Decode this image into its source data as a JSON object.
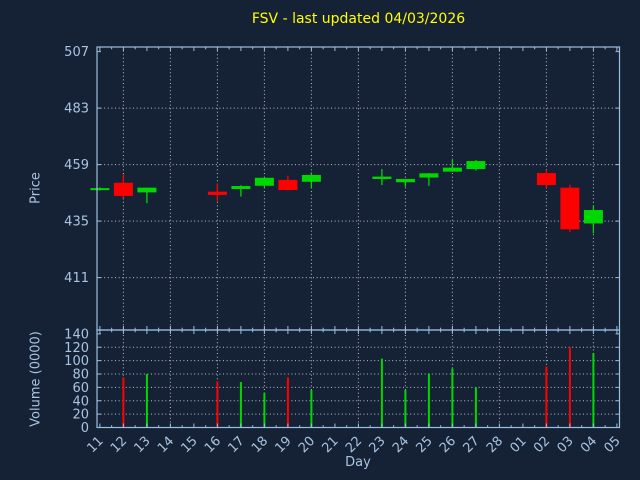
{
  "title": "FSV - last updated 04/03/2026",
  "colors": {
    "background": "#152236",
    "up": "#00d800",
    "down": "#ff0000",
    "frame": "#9cbede",
    "grid": "#b8bfc9",
    "label": "#a8c4e0",
    "title": "#ffff00"
  },
  "chart_data": {
    "type": "candlestick+volume",
    "symbol": "FSV",
    "title": "FSV - last updated 04/03/2026",
    "xlabel": "Day",
    "grid": true,
    "price_axis": {
      "label": "Price",
      "ticks": [
        507,
        483,
        459,
        435,
        411
      ],
      "gridlines": [
        483,
        459,
        435,
        411
      ],
      "range": [
        406,
        510
      ]
    },
    "volume_axis": {
      "label": "Volume (0000)",
      "ticks": [
        140,
        120,
        100,
        80,
        60,
        40,
        20,
        0
      ],
      "gridlines": [
        120,
        100,
        80,
        60,
        40,
        20
      ],
      "range": [
        0,
        145
      ]
    },
    "categories": [
      "11",
      "12",
      "13",
      "14",
      "15",
      "16",
      "17",
      "18",
      "19",
      "20",
      "21",
      "22",
      "23",
      "24",
      "25",
      "26",
      "27",
      "28",
      "01",
      "02",
      "03",
      "04",
      "05"
    ],
    "candles": [
      {
        "day": "11",
        "open": 448.2,
        "high": 449.3,
        "low": 448.0,
        "close": 449.0,
        "volume": 0
      },
      {
        "day": "12",
        "open": 451.3,
        "high": 454.9,
        "low": 444.7,
        "close": 445.7,
        "volume": 75
      },
      {
        "day": "13",
        "open": 447.2,
        "high": 449.2,
        "low": 442.6,
        "close": 449.2,
        "volume": 80
      },
      {
        "day": "16",
        "open": 447.5,
        "high": 450.8,
        "low": 443.5,
        "close": 446.1,
        "volume": 69
      },
      {
        "day": "17",
        "open": 448.6,
        "high": 450.2,
        "low": 445.4,
        "close": 449.9,
        "volume": 68
      },
      {
        "day": "18",
        "open": 450.0,
        "high": 453.4,
        "low": 449.2,
        "close": 453.4,
        "volume": 52
      },
      {
        "day": "19",
        "open": 452.5,
        "high": 454.3,
        "low": 448.0,
        "close": 448.2,
        "volume": 75
      },
      {
        "day": "20",
        "open": 451.7,
        "high": 455.7,
        "low": 448.9,
        "close": 454.6,
        "volume": 56
      },
      {
        "day": "23",
        "open": 452.9,
        "high": 457.1,
        "low": 450.3,
        "close": 453.9,
        "volume": 103
      },
      {
        "day": "24",
        "open": 451.5,
        "high": 452.9,
        "low": 449.6,
        "close": 452.9,
        "volume": 56
      },
      {
        "day": "25",
        "open": 453.5,
        "high": 455.4,
        "low": 450.0,
        "close": 455.3,
        "volume": 81
      },
      {
        "day": "26",
        "open": 456.0,
        "high": 461.0,
        "low": 456.0,
        "close": 457.7,
        "volume": 88
      },
      {
        "day": "27",
        "open": 457.1,
        "high": 460.9,
        "low": 456.5,
        "close": 460.5,
        "volume": 60
      },
      {
        "day": "02",
        "open": 455.4,
        "high": 456.7,
        "low": 449.1,
        "close": 450.3,
        "volume": 91
      },
      {
        "day": "03",
        "open": 449.2,
        "high": 450.4,
        "low": 430.5,
        "close": 431.5,
        "volume": 120
      },
      {
        "day": "04",
        "open": 434.0,
        "high": 441.5,
        "low": 429.8,
        "close": 439.7,
        "volume": 111
      }
    ]
  }
}
